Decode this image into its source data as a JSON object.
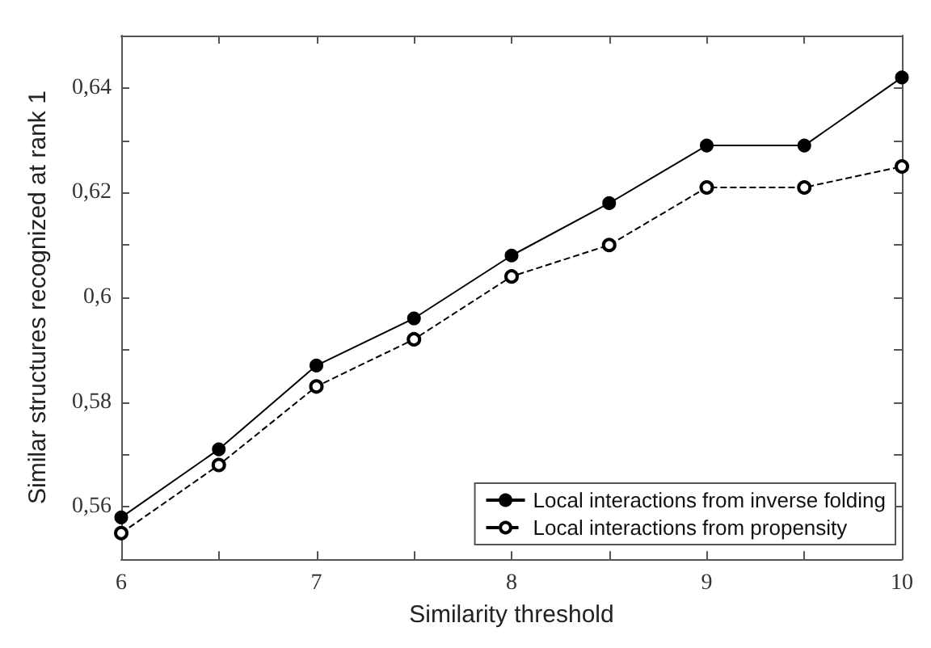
{
  "chart_data": {
    "type": "line",
    "xlabel": "Similarity threshold",
    "ylabel": "Similar structures recognized at rank 1",
    "x": [
      6,
      6.5,
      7,
      7.5,
      8,
      8.5,
      9,
      9.5,
      10
    ],
    "series": [
      {
        "name": "Local interactions from inverse folding",
        "color": "#000000",
        "marker": "circle",
        "line_style": "solid",
        "values": [
          0.558,
          0.571,
          0.587,
          0.596,
          0.608,
          0.618,
          0.629,
          0.629,
          0.642
        ]
      },
      {
        "name": "Local interactions from propensity",
        "color": "#000000",
        "marker": "circle_open",
        "line_style": "dashed",
        "values": [
          0.555,
          0.568,
          0.583,
          0.592,
          0.604,
          0.61,
          0.621,
          0.621,
          0.625
        ]
      }
    ],
    "xlim": [
      6,
      10
    ],
    "xticks": [
      6,
      {
        "value": 6.5,
        "label": null
      },
      7,
      {
        "value": 7.5,
        "label": null
      },
      8,
      {
        "value": 8.5,
        "label": null
      },
      9,
      {
        "value": 9.5,
        "label": null
      },
      10
    ],
    "ylim": [
      0.55,
      0.65
    ],
    "yticks": [
      {
        "value": 0.56,
        "label": "0,56"
      },
      {
        "value": 0.57,
        "label": null
      },
      {
        "value": 0.58,
        "label": "0,58"
      },
      {
        "value": 0.59,
        "label": null
      },
      {
        "value": 0.6,
        "label": "0,6"
      },
      {
        "value": 0.61,
        "label": null
      },
      {
        "value": 0.62,
        "label": "0,62"
      },
      {
        "value": 0.63,
        "label": null
      },
      {
        "value": 0.64,
        "label": "0,64"
      }
    ],
    "grid": false,
    "legend": "bottom right"
  }
}
